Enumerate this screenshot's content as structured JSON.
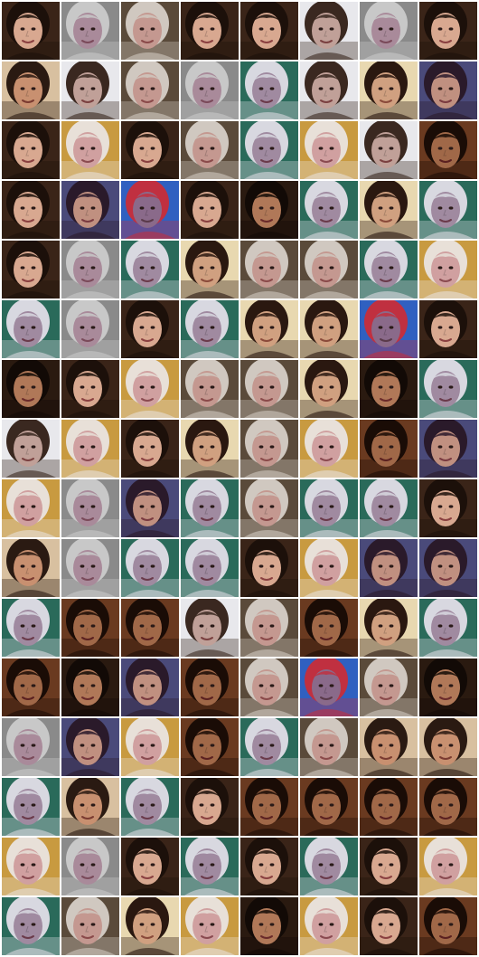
{
  "grid": {
    "columns": 8,
    "rows": 16,
    "tile_count": 128,
    "separator_color": "#ffffff",
    "palette": {
      "A": {
        "bg": "#3a2418",
        "hair": "#1c100a",
        "skin": "#d8a890",
        "mouth": "#8a4040"
      },
      "B": {
        "bg": "#8a8a8a",
        "hair": "#c8c8c8",
        "skin": "#a98a9a",
        "mouth": "#7a4a5a"
      },
      "C": {
        "bg": "#5a4a3a",
        "hair": "#d0c8c0",
        "skin": "#c49890",
        "mouth": "#8a4a4a"
      },
      "D": {
        "bg": "#2a1a10",
        "hair": "#120a06",
        "skin": "#b07858",
        "mouth": "#6a2a2a"
      },
      "E": {
        "bg": "#e8e8ec",
        "hair": "#3a2820",
        "skin": "#c0a098",
        "mouth": "#7a4040"
      },
      "F": {
        "bg": "#c89a40",
        "hair": "#e8e0d8",
        "skin": "#d0a0a0",
        "mouth": "#8a4a50"
      },
      "G": {
        "bg": "#2a6a5a",
        "hair": "#d8d8e0",
        "skin": "#a08aa0",
        "mouth": "#6a3a4a"
      },
      "H": {
        "bg": "#d8c0a0",
        "hair": "#2a1a12",
        "skin": "#c89070",
        "mouth": "#7a3a30"
      },
      "I": {
        "bg": "#4a4a7a",
        "hair": "#2a1a2a",
        "skin": "#c09080",
        "mouth": "#7a3a40"
      },
      "J": {
        "bg": "#3060c0",
        "hair": "#c03040",
        "skin": "#8a6a8a",
        "mouth": "#5a3a4a"
      },
      "K": {
        "bg": "#e8d8b0",
        "hair": "#2a1810",
        "skin": "#d0a080",
        "mouth": "#8a4a3a"
      },
      "L": {
        "bg": "#6a3a20",
        "hair": "#1a0c06",
        "skin": "#a06848",
        "mouth": "#5a2020"
      }
    },
    "tiles": [
      "A",
      "B",
      "C",
      "A",
      "A",
      "E",
      "B",
      "A",
      "H",
      "E",
      "C",
      "B",
      "G",
      "E",
      "K",
      "I",
      "A",
      "F",
      "A",
      "C",
      "G",
      "F",
      "E",
      "L",
      "A",
      "I",
      "J",
      "A",
      "D",
      "G",
      "K",
      "G",
      "A",
      "B",
      "G",
      "K",
      "C",
      "C",
      "G",
      "F",
      "G",
      "B",
      "A",
      "G",
      "K",
      "K",
      "J",
      "A",
      "D",
      "A",
      "F",
      "C",
      "C",
      "K",
      "D",
      "G",
      "E",
      "F",
      "A",
      "K",
      "C",
      "F",
      "L",
      "I",
      "F",
      "B",
      "I",
      "G",
      "C",
      "G",
      "G",
      "A",
      "H",
      "B",
      "G",
      "G",
      "A",
      "F",
      "I",
      "I",
      "G",
      "L",
      "L",
      "E",
      "C",
      "L",
      "K",
      "G",
      "L",
      "D",
      "I",
      "L",
      "C",
      "J",
      "C",
      "D",
      "B",
      "I",
      "F",
      "L",
      "G",
      "C",
      "H",
      "H",
      "G",
      "H",
      "G",
      "A",
      "L",
      "L",
      "L",
      "L",
      "F",
      "B",
      "A",
      "G",
      "A",
      "G",
      "A",
      "F",
      "G",
      "C",
      "K",
      "F",
      "D",
      "F",
      "A",
      "L"
    ]
  }
}
